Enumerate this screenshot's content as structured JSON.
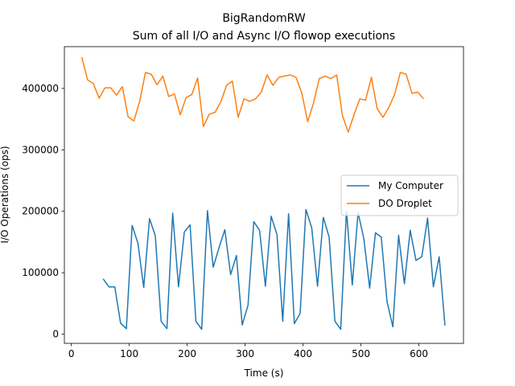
{
  "chart_data": {
    "type": "line",
    "title": "BigRandomRW",
    "subtitle": "Sum of all I/O and Async I/O flowop executions",
    "xlabel": "Time (s)",
    "ylabel": "I/O Operations (ops)",
    "xlim": [
      -12,
      677
    ],
    "ylim": [
      -15000,
      468000
    ],
    "x_ticks": [
      0,
      100,
      200,
      300,
      400,
      500,
      600
    ],
    "x_tick_labels": [
      "0",
      "100",
      "200",
      "300",
      "400",
      "500",
      "600"
    ],
    "y_ticks": [
      0,
      100000,
      200000,
      300000,
      400000
    ],
    "y_tick_labels": [
      "0",
      "100000",
      "200000",
      "300000",
      "400000"
    ],
    "grid": false,
    "legend_position": "center-right",
    "series": [
      {
        "name": "My Computer",
        "color": "#1f77b4",
        "x": [
          55,
          65,
          75,
          85,
          95,
          105,
          115,
          125,
          135,
          145,
          155,
          165,
          175,
          185,
          195,
          205,
          215,
          225,
          235,
          245,
          255,
          265,
          275,
          285,
          295,
          305,
          315,
          325,
          335,
          345,
          355,
          365,
          375,
          385,
          395,
          405,
          415,
          425,
          435,
          445,
          455,
          465,
          475,
          485,
          495,
          505,
          515,
          525,
          535,
          545,
          555,
          565,
          575,
          585,
          595,
          605,
          615,
          625,
          635,
          645
        ],
        "y": [
          90000,
          77000,
          77000,
          18000,
          9000,
          177000,
          148000,
          76000,
          188000,
          160000,
          21000,
          9000,
          197000,
          77000,
          166000,
          178000,
          21000,
          8000,
          201000,
          109000,
          141000,
          170000,
          97000,
          128000,
          15000,
          47000,
          183000,
          169000,
          78000,
          192000,
          162000,
          21000,
          196000,
          17000,
          34000,
          203000,
          173000,
          78000,
          190000,
          158000,
          21000,
          8000,
          201000,
          80000,
          198000,
          155000,
          75000,
          165000,
          158000,
          53000,
          12000,
          161000,
          82000,
          169000,
          120000,
          126000,
          189000,
          77000,
          126000,
          14000
        ]
      },
      {
        "name": "DO Droplet",
        "color": "#ff7f0e",
        "x": [
          18,
          28,
          38,
          48,
          58,
          68,
          78,
          88,
          98,
          108,
          118,
          128,
          138,
          148,
          158,
          168,
          178,
          188,
          198,
          208,
          218,
          228,
          238,
          248,
          258,
          268,
          278,
          288,
          298,
          308,
          318,
          328,
          338,
          348,
          358,
          368,
          378,
          388,
          398,
          408,
          418,
          428,
          438,
          448,
          458,
          468,
          478,
          488,
          498,
          508,
          518,
          528,
          538,
          548,
          558,
          568,
          578,
          588,
          598,
          608
        ],
        "y": [
          451000,
          414000,
          408000,
          384000,
          401000,
          401000,
          389000,
          403000,
          354000,
          347000,
          379000,
          426000,
          423000,
          406000,
          420000,
          387000,
          391000,
          357000,
          385000,
          390000,
          417000,
          338000,
          358000,
          361000,
          378000,
          405000,
          412000,
          353000,
          383000,
          379000,
          383000,
          394000,
          422000,
          405000,
          418000,
          420000,
          422000,
          418000,
          392000,
          346000,
          376000,
          416000,
          420000,
          416000,
          422000,
          356000,
          329000,
          357000,
          383000,
          381000,
          418000,
          367000,
          353000,
          369000,
          390000,
          426000,
          423000,
          392000,
          394000,
          383000
        ]
      }
    ]
  }
}
